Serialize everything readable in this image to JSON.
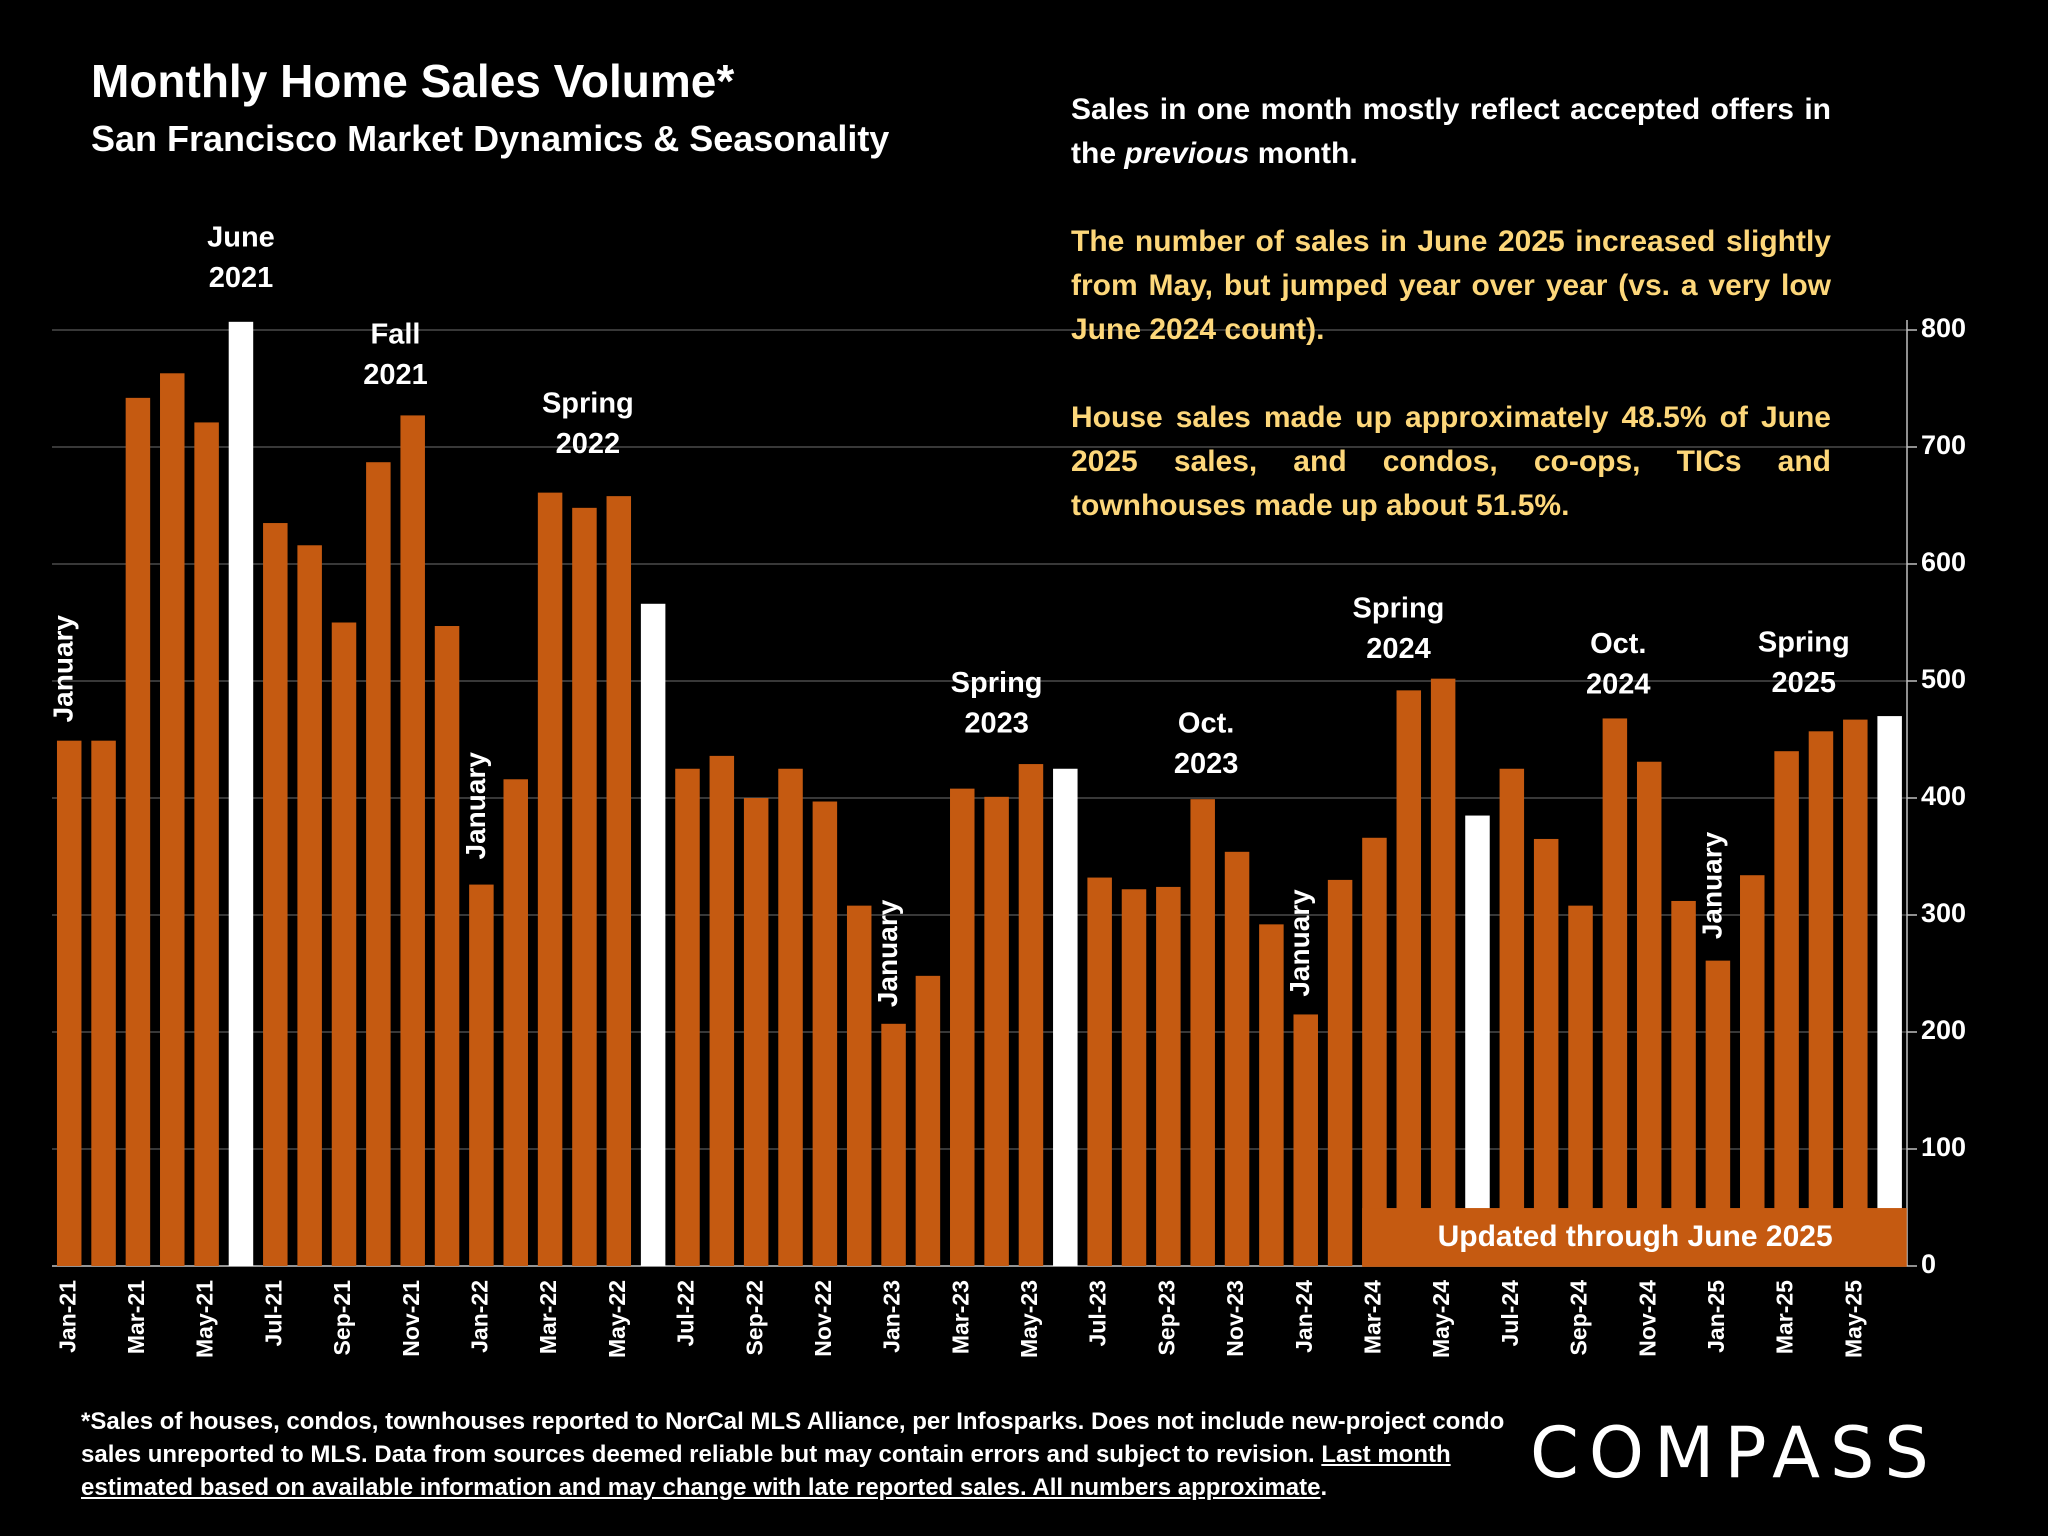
{
  "chart_data": {
    "type": "bar",
    "title": "Monthly Home Sales Volume*",
    "subtitle": "San Francisco Market Dynamics & Seasonality",
    "categories": [
      "Jan-21",
      null,
      "Mar-21",
      null,
      "May-21",
      null,
      "Jul-21",
      null,
      "Sep-21",
      null,
      "Nov-21",
      null,
      "Jan-22",
      null,
      "Mar-22",
      null,
      "May-22",
      null,
      "Jul-22",
      null,
      "Sep-22",
      null,
      "Nov-22",
      null,
      "Jan-23",
      null,
      "Mar-23",
      null,
      "May-23",
      null,
      "Jul-23",
      null,
      "Sep-23",
      null,
      "Nov-23",
      null,
      "Jan-24",
      null,
      "Mar-24",
      null,
      "May-24",
      null,
      "Jul-24",
      null,
      "Sep-24",
      null,
      "Nov-24",
      null,
      "Jan-25",
      null,
      "Mar-25",
      null,
      "May-25",
      null
    ],
    "values": [
      449,
      449,
      742,
      763,
      721,
      807,
      635,
      616,
      550,
      687,
      727,
      547,
      326,
      416,
      661,
      648,
      658,
      566,
      425,
      436,
      400,
      425,
      397,
      308,
      207,
      248,
      408,
      401,
      429,
      425,
      332,
      322,
      324,
      399,
      354,
      292,
      215,
      330,
      366,
      492,
      502,
      385,
      425,
      365,
      308,
      468,
      431,
      312,
      261,
      334,
      440,
      457,
      467,
      470
    ],
    "colors": [
      "#c55a11",
      "#c55a11",
      "#c55a11",
      "#c55a11",
      "#c55a11",
      "#ffffff",
      "#c55a11",
      "#c55a11",
      "#c55a11",
      "#c55a11",
      "#c55a11",
      "#c55a11",
      "#c55a11",
      "#c55a11",
      "#c55a11",
      "#c55a11",
      "#c55a11",
      "#ffffff",
      "#c55a11",
      "#c55a11",
      "#c55a11",
      "#c55a11",
      "#c55a11",
      "#c55a11",
      "#c55a11",
      "#c55a11",
      "#c55a11",
      "#c55a11",
      "#c55a11",
      "#ffffff",
      "#c55a11",
      "#c55a11",
      "#c55a11",
      "#c55a11",
      "#c55a11",
      "#c55a11",
      "#c55a11",
      "#c55a11",
      "#c55a11",
      "#c55a11",
      "#c55a11",
      "#ffffff",
      "#c55a11",
      "#c55a11",
      "#c55a11",
      "#c55a11",
      "#c55a11",
      "#c55a11",
      "#c55a11",
      "#c55a11",
      "#c55a11",
      "#c55a11",
      "#c55a11",
      "#ffffff"
    ],
    "ylim": [
      0,
      800
    ],
    "yticks": [
      0,
      100,
      200,
      300,
      400,
      500,
      600,
      700,
      800
    ],
    "grid": true,
    "annotations": [
      {
        "lines": [
          "June",
          "2021"
        ]
      },
      {
        "lines": [
          "Fall",
          "2021"
        ]
      },
      {
        "lines": [
          "Spring",
          "2022"
        ]
      },
      {
        "lines": [
          "Spring",
          "2023"
        ]
      },
      {
        "lines": [
          "Oct.",
          "2023"
        ]
      },
      {
        "lines": [
          "Spring",
          "2024"
        ]
      },
      {
        "lines": [
          "Oct.",
          "2024"
        ]
      },
      {
        "lines": [
          "Spring",
          "2025"
        ]
      }
    ],
    "january_labels": [
      "January",
      "January",
      "January",
      "January",
      "January"
    ],
    "banner": "Updated through June 2025"
  },
  "notes": [
    [
      "Sales in one month mostly reflect accepted offers in the ",
      "previous",
      " month."
    ],
    "The number of sales in June 2025 increased slightly from May, but jumped year over year (vs. a very low June 2024 count).",
    "House sales made up approximately 48.5% of June 2025 sales, and condos, co-ops, TICs and townhouses made up about 51.5%."
  ],
  "footnote": [
    "*Sales of houses, condos, townhouses reported to NorCal MLS Alliance, per Infosparks. Does not include new-project condo sales unreported to MLS. Data from sources deemed reliable but may contain errors and subject to revision. ",
    "Last month estimated based on available information and may change with late reported sales. All numbers approximate",
    "."
  ],
  "logo": "COMPASS"
}
